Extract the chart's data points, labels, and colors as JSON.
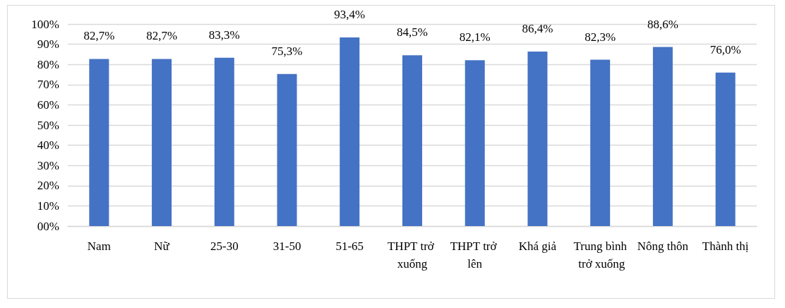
{
  "chart_data": {
    "type": "bar",
    "categories": [
      "Nam",
      "Nữ",
      "25-30",
      "31-50",
      "51-65",
      "THPT trở xuống",
      "THPT trở lên",
      "Khá giả",
      "Trung bình trở xuống",
      "Nông thôn",
      "Thành thị"
    ],
    "values": [
      82.7,
      82.7,
      83.3,
      75.3,
      93.4,
      84.5,
      82.1,
      86.4,
      82.3,
      88.6,
      76.0
    ],
    "value_labels": [
      "82,7%",
      "82,7%",
      "83,3%",
      "75,3%",
      "93,4%",
      "84,5%",
      "82,1%",
      "86,4%",
      "82,3%",
      "88,6%",
      "76,0%"
    ],
    "color": "#4472c4",
    "ylim": [
      0,
      100
    ],
    "yticks": [
      {
        "value": 0,
        "label": "00%"
      },
      {
        "value": 10,
        "label": "10%"
      },
      {
        "value": 20,
        "label": "20%"
      },
      {
        "value": 30,
        "label": "30%"
      },
      {
        "value": 40,
        "label": "40%"
      },
      {
        "value": 50,
        "label": "50%"
      },
      {
        "value": 60,
        "label": "60%"
      },
      {
        "value": 70,
        "label": "70%"
      },
      {
        "value": 80,
        "label": "80%"
      },
      {
        "value": 90,
        "label": "90%"
      },
      {
        "value": 100,
        "label": "100%"
      }
    ],
    "grid": true
  }
}
